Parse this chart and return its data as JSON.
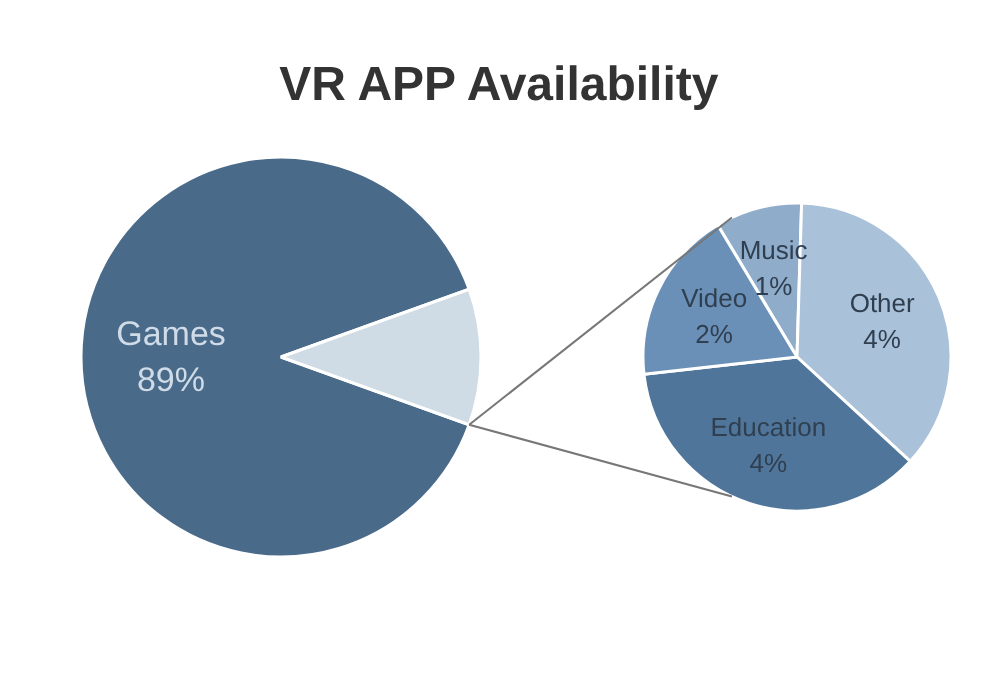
{
  "chart_data": [
    {
      "type": "pie",
      "title": "VR APP Availability",
      "categories": [
        "Games",
        null
      ],
      "values": [
        89,
        11
      ],
      "colors": [
        "#4a6a8a",
        "#cfdbe5"
      ],
      "value_labels": [
        "89%",
        null
      ]
    },
    {
      "type": "pie",
      "categories": [
        "Music",
        "Other",
        "Education",
        "Video"
      ],
      "values": [
        1,
        4,
        4,
        2
      ],
      "colors": [
        "#8faccb",
        "#a9c1d9",
        "#50759b",
        "#6b90b8"
      ],
      "value_labels": [
        "1%",
        "4%",
        "4%",
        "2%"
      ]
    }
  ]
}
